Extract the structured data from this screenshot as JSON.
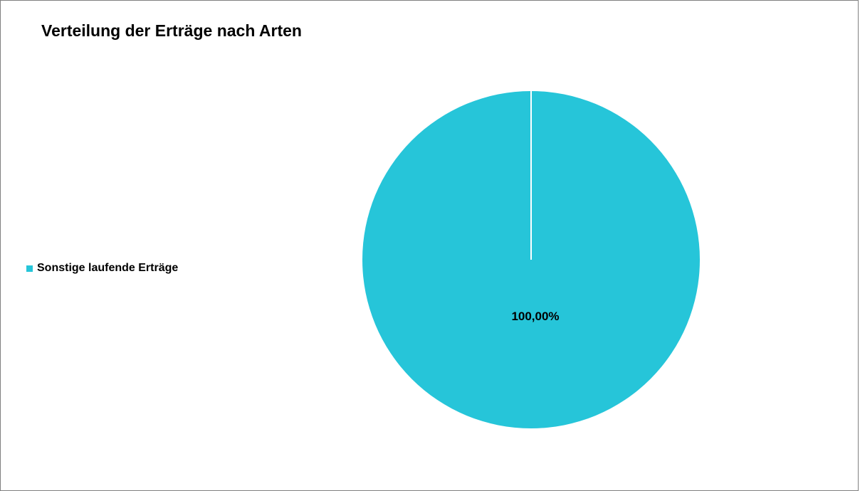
{
  "chart_data": {
    "type": "pie",
    "title": "Verteilung der Erträge nach Arten",
    "categories": [
      "Sonstige laufende Erträge"
    ],
    "values": [
      100.0
    ],
    "data_labels": [
      "100,00%"
    ],
    "colors": [
      "#26C5D9"
    ],
    "legend": {
      "placement": "left",
      "entries": [
        "Sonstige laufende Erträge"
      ]
    }
  }
}
